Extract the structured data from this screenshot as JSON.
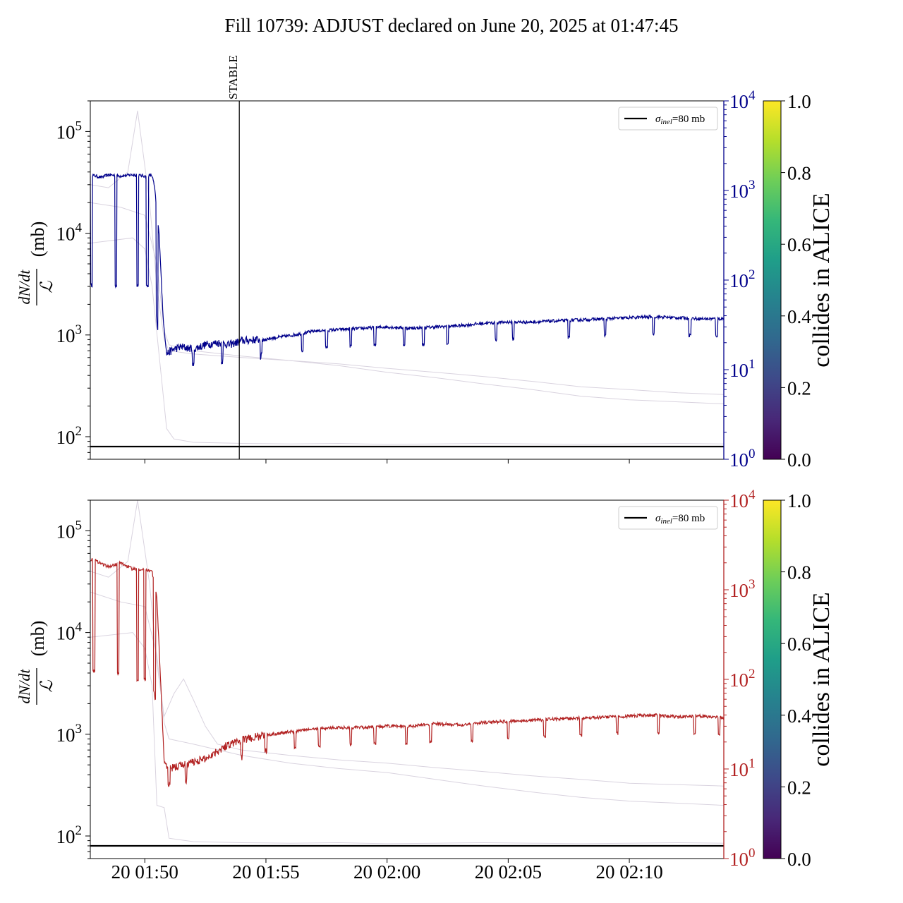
{
  "title": "Fill 10739: ADJUST declared on June 20, 2025 at 01:47:45",
  "colors": {
    "top_series": "#00008b",
    "bottom_series": "#b22222",
    "background_traces": "#d9d3df",
    "reference_line": "#000000",
    "colormap": [
      "#440154",
      "#482878",
      "#3e4989",
      "#31688e",
      "#26828e",
      "#1f9e89",
      "#35b779",
      "#6ece58",
      "#b5de2b",
      "#fde725"
    ]
  },
  "chart_data": [
    {
      "type": "line",
      "panel": "top",
      "ylabel_numerator": "dN/dt",
      "ylabel_denominator": "ℒ",
      "ylabel_unit": "(mb)",
      "yscale": "log",
      "ylim": [
        60,
        200000
      ],
      "left_yticks": [
        {
          "value": 100,
          "label": "10",
          "exp": "2"
        },
        {
          "value": 1000,
          "label": "10",
          "exp": "3"
        },
        {
          "value": 10000,
          "label": "10",
          "exp": "4"
        },
        {
          "value": 100000,
          "label": "10",
          "exp": "5"
        }
      ],
      "right_axis": {
        "scale": "log",
        "lim": [
          1,
          10000
        ],
        "color": "#00008b",
        "ticks": [
          {
            "value": 1,
            "label": "10",
            "exp": "0"
          },
          {
            "value": 10,
            "label": "10",
            "exp": "1"
          },
          {
            "value": 100,
            "label": "10",
            "exp": "2"
          },
          {
            "value": 1000,
            "label": "10",
            "exp": "3"
          },
          {
            "value": 10000,
            "label": "10",
            "exp": "4"
          }
        ]
      },
      "xlim_minutes": [
        -2.25,
        23.9
      ],
      "xticks_minutes": [
        0,
        5,
        10,
        15,
        20
      ],
      "xtick_labels": [
        "",
        "",
        "",
        "",
        ""
      ],
      "reference": {
        "value": 80,
        "label_sym": "σ",
        "label_sub": "inel",
        "label_rest": "=80 mb"
      },
      "annotation": {
        "label": "STABLE",
        "x_minutes": 3.9
      },
      "legend_position": "upper right",
      "colorbar": {
        "label": "collides in ALICE",
        "ticks": [
          "0.0",
          "0.2",
          "0.4",
          "0.6",
          "0.8",
          "1.0"
        ]
      },
      "series_main": {
        "x_minutes": [
          -2.25,
          -1.8,
          -1.5,
          -1.0,
          -0.5,
          0.0,
          0.3,
          0.4,
          0.6,
          0.75,
          0.9,
          1.2,
          1.5,
          2.0,
          2.5,
          3.0,
          3.5,
          4.0,
          5.0,
          6.0,
          7.0,
          8.0,
          9.0,
          10.0,
          11.0,
          12.0,
          13.0,
          14.0,
          15.0,
          16.0,
          17.0,
          18.0,
          19.0,
          20.0,
          21.0,
          22.0,
          23.0,
          23.9
        ],
        "y": [
          1500,
          1400,
          1500,
          1450,
          1500,
          1450,
          1470,
          1100,
          300,
          40,
          15,
          17,
          18,
          17,
          19,
          20,
          19,
          21,
          22,
          24,
          27,
          28,
          29,
          30,
          29,
          30,
          31,
          33,
          34,
          34,
          35,
          36,
          37,
          38,
          39,
          38,
          37,
          37
        ],
        "dips_minutes": [
          -2.2,
          -1.2,
          -0.3,
          0.1,
          0.5,
          2.0,
          3.2,
          4.8,
          6.5,
          7.5,
          8.5,
          9.5,
          10.7,
          11.5,
          12.5,
          14.5,
          15.2,
          17.5,
          19.0,
          21.0,
          22.5,
          23.6
        ]
      },
      "background_series": [
        {
          "x_minutes": [
            -2.25,
            -1.5,
            -0.7,
            -0.3,
            0.2,
            0.5,
            0.8,
            1.0,
            2.0,
            4.0,
            6.0,
            8.0,
            10.0,
            12.0,
            14.0,
            16.0,
            18.0,
            20.0,
            22.0,
            23.9
          ],
          "y": [
            30000,
            28000,
            40000,
            160000,
            20000,
            3000,
            900,
            700,
            650,
            600,
            560,
            520,
            470,
            430,
            390,
            350,
            310,
            290,
            270,
            260
          ]
        },
        {
          "x_minutes": [
            -2.25,
            -1.0,
            0.0,
            0.5,
            0.8,
            1.0,
            2.0,
            4.0,
            6.0,
            8.0,
            10.0,
            12.0,
            14.0,
            16.0,
            18.0,
            20.0,
            22.0,
            23.9
          ],
          "y": [
            20000,
            18000,
            15000,
            5000,
            1100,
            800,
            700,
            620,
            560,
            500,
            430,
            380,
            330,
            290,
            250,
            230,
            220,
            210
          ]
        },
        {
          "x_minutes": [
            -2.25,
            -0.5,
            0.0,
            0.3,
            0.6,
            0.9,
            1.2,
            2.0,
            4.0,
            6.0,
            8.0,
            10.0,
            12.0,
            14.0,
            16.0,
            18.0,
            20.0,
            22.0,
            23.9
          ],
          "y": [
            8000,
            9000,
            7000,
            3000,
            600,
            120,
            95,
            88,
            86,
            85,
            86,
            84,
            85,
            86,
            85,
            84,
            85,
            86,
            85
          ]
        }
      ]
    },
    {
      "type": "line",
      "panel": "bottom",
      "ylabel_numerator": "dN/dt",
      "ylabel_denominator": "ℒ",
      "ylabel_unit": "(mb)",
      "yscale": "log",
      "ylim": [
        60,
        200000
      ],
      "left_yticks": [
        {
          "value": 100,
          "label": "10",
          "exp": "2"
        },
        {
          "value": 1000,
          "label": "10",
          "exp": "3"
        },
        {
          "value": 10000,
          "label": "10",
          "exp": "4"
        },
        {
          "value": 100000,
          "label": "10",
          "exp": "5"
        }
      ],
      "right_axis": {
        "scale": "log",
        "lim": [
          1,
          10000
        ],
        "color": "#b22222",
        "ticks": [
          {
            "value": 1,
            "label": "10",
            "exp": "0"
          },
          {
            "value": 10,
            "label": "10",
            "exp": "1"
          },
          {
            "value": 100,
            "label": "10",
            "exp": "2"
          },
          {
            "value": 1000,
            "label": "10",
            "exp": "3"
          },
          {
            "value": 10000,
            "label": "10",
            "exp": "4"
          }
        ]
      },
      "xlim_minutes": [
        -2.25,
        23.9
      ],
      "xticks_minutes": [
        0,
        5,
        10,
        15,
        20
      ],
      "xtick_labels": [
        "20 01:50",
        "20 01:55",
        "20 02:00",
        "20 02:05",
        "20 02:10"
      ],
      "reference": {
        "value": 80,
        "label_sym": "σ",
        "label_sub": "inel",
        "label_rest": "=80 mb"
      },
      "legend_position": "upper right",
      "colorbar": {
        "label": "collides in ALICE",
        "ticks": [
          "0.0",
          "0.2",
          "0.4",
          "0.6",
          "0.8",
          "1.0"
        ]
      },
      "series_main": {
        "x_minutes": [
          -2.25,
          -2.0,
          -1.5,
          -1.0,
          -0.5,
          0.0,
          0.3,
          0.5,
          0.6,
          0.8,
          1.0,
          1.5,
          2.0,
          2.5,
          3.0,
          3.5,
          4.0,
          5.0,
          6.0,
          7.0,
          8.0,
          9.0,
          10.0,
          11.0,
          12.0,
          13.0,
          14.0,
          15.0,
          16.0,
          17.0,
          18.0,
          19.0,
          20.0,
          21.0,
          22.0,
          23.0,
          23.9
        ],
        "y": [
          2200,
          2100,
          1800,
          2000,
          1700,
          1700,
          1600,
          800,
          200,
          12,
          10,
          11,
          12,
          13,
          16,
          19,
          21,
          24,
          26,
          28,
          29,
          29,
          30,
          30,
          32,
          31,
          33,
          34,
          35,
          36,
          37,
          38,
          39,
          40,
          38,
          39,
          37
        ],
        "dips_minutes": [
          -2.1,
          -1.1,
          -0.3,
          0.0,
          0.4,
          1.0,
          1.7,
          4.0,
          5.0,
          6.2,
          7.2,
          8.5,
          9.5,
          10.8,
          11.8,
          13.5,
          15.0,
          16.5,
          18.0,
          19.5,
          21.2,
          22.7,
          23.7
        ]
      },
      "background_series": [
        {
          "x_minutes": [
            -2.25,
            -1.5,
            -0.7,
            -0.3,
            0.2,
            0.5,
            0.8,
            1.2,
            1.6,
            2.0,
            2.5,
            3.0,
            4.0,
            6.0,
            8.0,
            10.0,
            12.0,
            14.0,
            16.0,
            18.0,
            20.0,
            22.0,
            23.9
          ],
          "y": [
            40000,
            35000,
            50000,
            200000,
            30000,
            5000,
            1500,
            2500,
            3500,
            2200,
            1200,
            800,
            700,
            620,
            560,
            520,
            470,
            430,
            390,
            360,
            330,
            320,
            310
          ]
        },
        {
          "x_minutes": [
            -2.25,
            -1.0,
            0.0,
            0.5,
            0.8,
            1.0,
            2.0,
            4.0,
            6.0,
            8.0,
            10.0,
            12.0,
            14.0,
            16.0,
            18.0,
            20.0,
            22.0,
            23.9
          ],
          "y": [
            25000,
            20000,
            18000,
            6000,
            1300,
            900,
            800,
            620,
            520,
            460,
            420,
            360,
            310,
            270,
            240,
            220,
            210,
            200
          ]
        },
        {
          "x_minutes": [
            -2.25,
            -0.5,
            0.0,
            0.3,
            0.5,
            0.8,
            1.0,
            2.0,
            4.0,
            6.0,
            8.0,
            10.0,
            12.0,
            14.0,
            16.0,
            18.0,
            20.0,
            22.0,
            23.9
          ],
          "y": [
            9000,
            10000,
            7000,
            3000,
            200,
            190,
            95,
            88,
            86,
            85,
            86,
            84,
            85,
            86,
            85,
            84,
            85,
            86,
            85
          ]
        }
      ]
    }
  ]
}
